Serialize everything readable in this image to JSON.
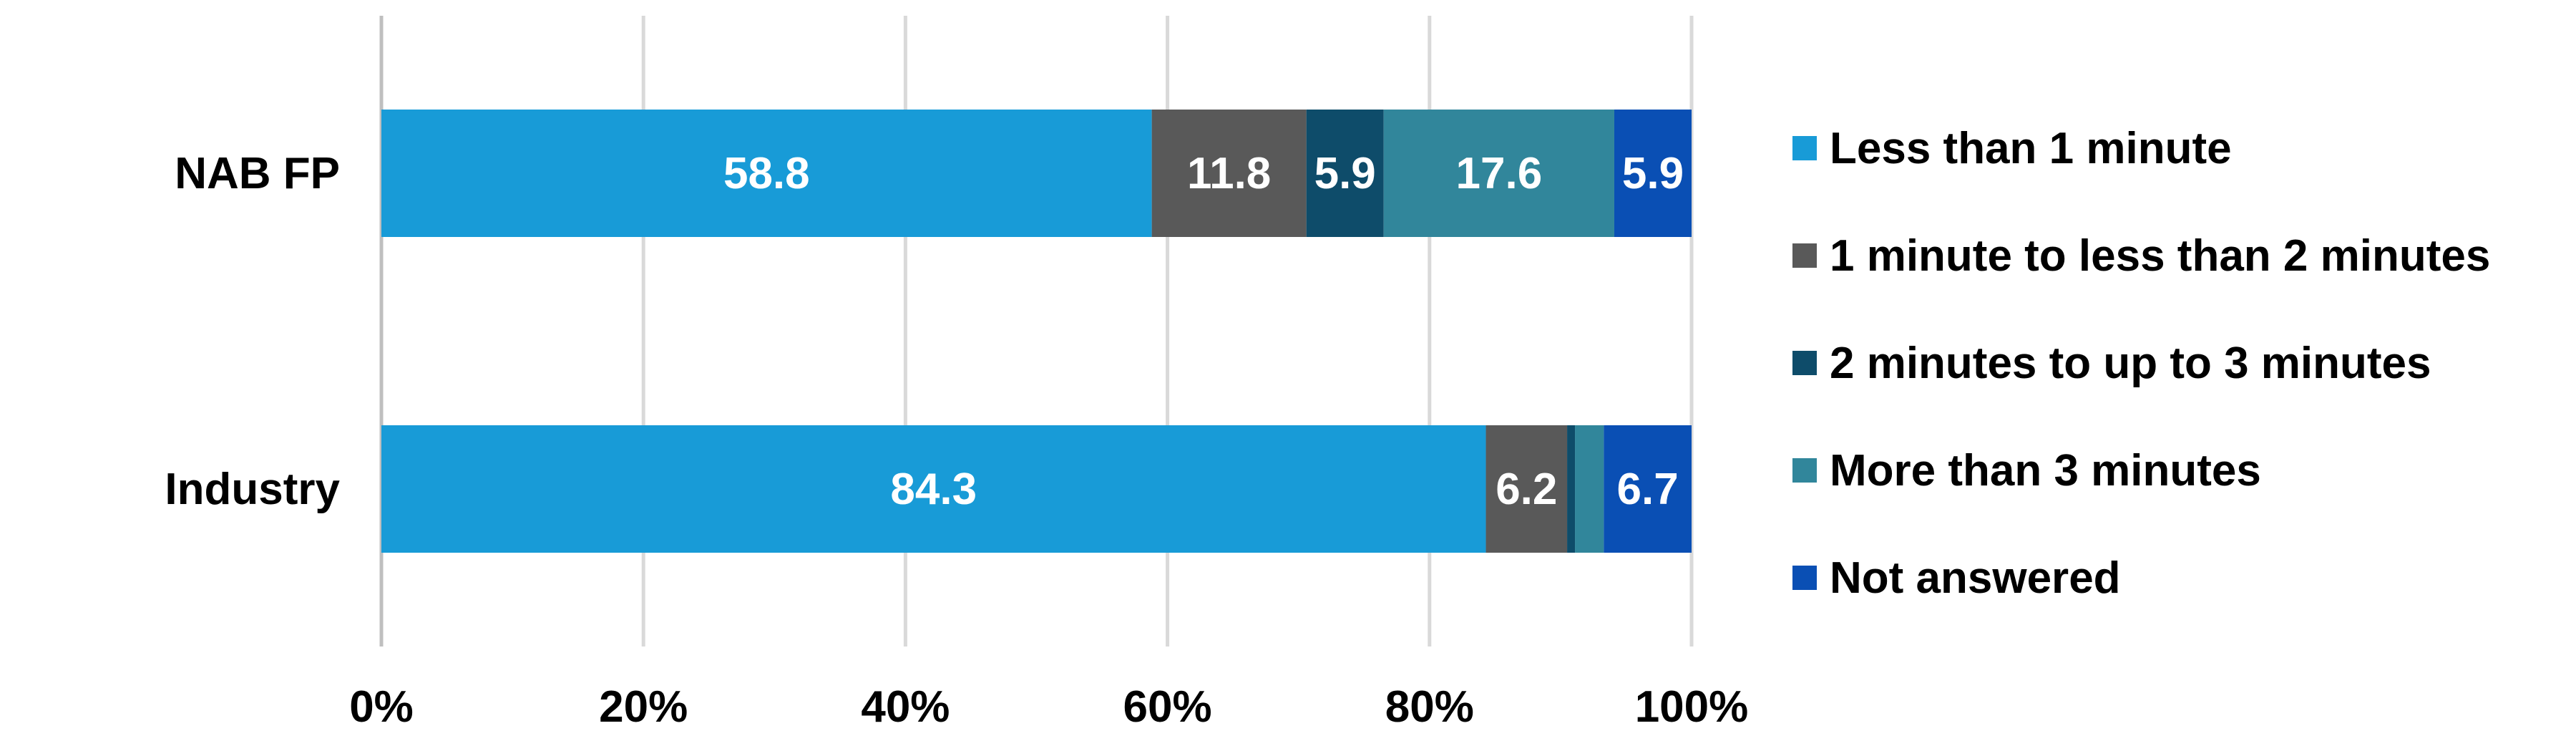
{
  "chart_data": {
    "type": "bar",
    "orientation": "horizontal",
    "stacked": "percent",
    "categories": [
      "NAB FP",
      "Industry"
    ],
    "series": [
      {
        "name": "Less than 1 minute",
        "color": "#189BD7",
        "values": [
          58.8,
          84.3
        ],
        "labels": [
          "58.8",
          "84.3"
        ]
      },
      {
        "name": "1 minute to less than 2 minutes",
        "color": "#595959",
        "values": [
          11.8,
          6.2
        ],
        "labels": [
          "11.8",
          "6.2"
        ]
      },
      {
        "name": "2 minutes to up to 3 minutes",
        "color": "#0E4C6A",
        "values": [
          5.9,
          0.6
        ],
        "labels": [
          "5.9",
          ""
        ]
      },
      {
        "name": "More than 3 minutes",
        "color": "#31869B",
        "values": [
          17.6,
          2.2
        ],
        "labels": [
          "17.6",
          ""
        ]
      },
      {
        "name": "Not answered",
        "color": "#0A4FB4",
        "values": [
          5.9,
          6.7
        ],
        "labels": [
          "5.9",
          "6.7"
        ]
      }
    ],
    "x_ticks": [
      "0%",
      "20%",
      "40%",
      "60%",
      "80%",
      "100%"
    ],
    "xlim": [
      0,
      100
    ],
    "grid": true,
    "legend_position": "right"
  }
}
